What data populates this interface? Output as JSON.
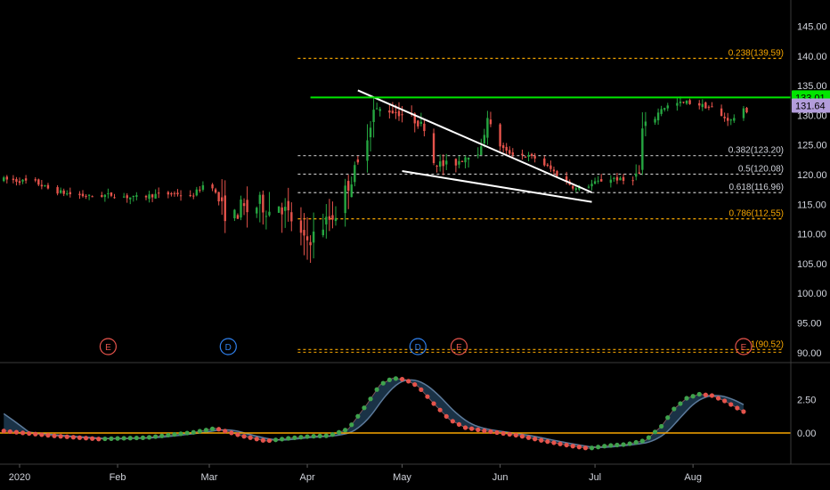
{
  "chart_data": {
    "type": "candlestick",
    "price_axis": {
      "ticks": [
        "145.00",
        "140.00",
        "135.00",
        "130.00",
        "125.00",
        "120.00",
        "115.00",
        "110.00",
        "105.00",
        "100.00",
        "95.00",
        "90.00"
      ],
      "tick_values": [
        145,
        140,
        135,
        130,
        125,
        120,
        115,
        110,
        105,
        100,
        95,
        90
      ],
      "ylim": [
        89.5,
        148.5
      ]
    },
    "x_axis": {
      "ticks": [
        "2020",
        "Feb",
        "Mar",
        "Apr",
        "May",
        "Jun",
        "Jul",
        "Aug"
      ],
      "tick_dates": [
        "2020-01-01",
        "2020-02-01",
        "2020-03-01",
        "2020-04-01",
        "2020-05-01",
        "2020-06-01",
        "2020-07-01",
        "2020-08-01"
      ]
    },
    "last_price": {
      "value": "131.64",
      "color": "#b39ddb"
    },
    "resistance": {
      "value": "133.01",
      "color": "#00e600",
      "from": "2020-04-02"
    },
    "fibonacci": [
      {
        "label": "0.238(139.59)",
        "value": 139.59,
        "color": "#f7a600"
      },
      {
        "label": "0.382(123.20)",
        "value": 123.2,
        "color": "#c0c0c0"
      },
      {
        "label": "0.5(120.08)",
        "value": 120.08,
        "color": "#c0c0c0"
      },
      {
        "label": "0.618(116.96)",
        "value": 116.96,
        "color": "#c0c0c0"
      },
      {
        "label": "0.786(112.55)",
        "value": 112.55,
        "color": "#f7a600"
      },
      {
        "label": "1(90.52)",
        "value": 90.52,
        "color": "#f7a600"
      }
    ],
    "trendlines": [
      {
        "from": [
          "2020-04-17",
          134.2
        ],
        "to": [
          "2020-06-30",
          117.0
        ],
        "color": "#ffffff"
      },
      {
        "from": [
          "2020-05-01",
          120.6
        ],
        "to": [
          "2020-06-30",
          115.4
        ],
        "color": "#ffffff"
      }
    ],
    "events": [
      {
        "letter": "E",
        "date": "2020-01-29",
        "color": "#e5534b"
      },
      {
        "letter": "D",
        "date": "2020-03-07",
        "color": "#2f80ed"
      },
      {
        "letter": "D",
        "date": "2020-05-06",
        "color": "#2f80ed"
      },
      {
        "letter": "E",
        "date": "2020-05-19",
        "color": "#e5534b"
      },
      {
        "letter": "E",
        "date": "2020-08-17",
        "color": "#e5534b"
      }
    ],
    "oscillator": {
      "ticks": [
        "2.50",
        "0.00"
      ],
      "tick_values": [
        2.5,
        0.0
      ],
      "zero_line_color": "#f7a600",
      "fast_color_up": "#3fa34d",
      "fast_color_down": "#e5534b",
      "slow_color": "#5c7a9a",
      "band_fill": "#1f3b52"
    },
    "candle_colors": {
      "up": "#26a641",
      "down": "#e5534b"
    }
  }
}
